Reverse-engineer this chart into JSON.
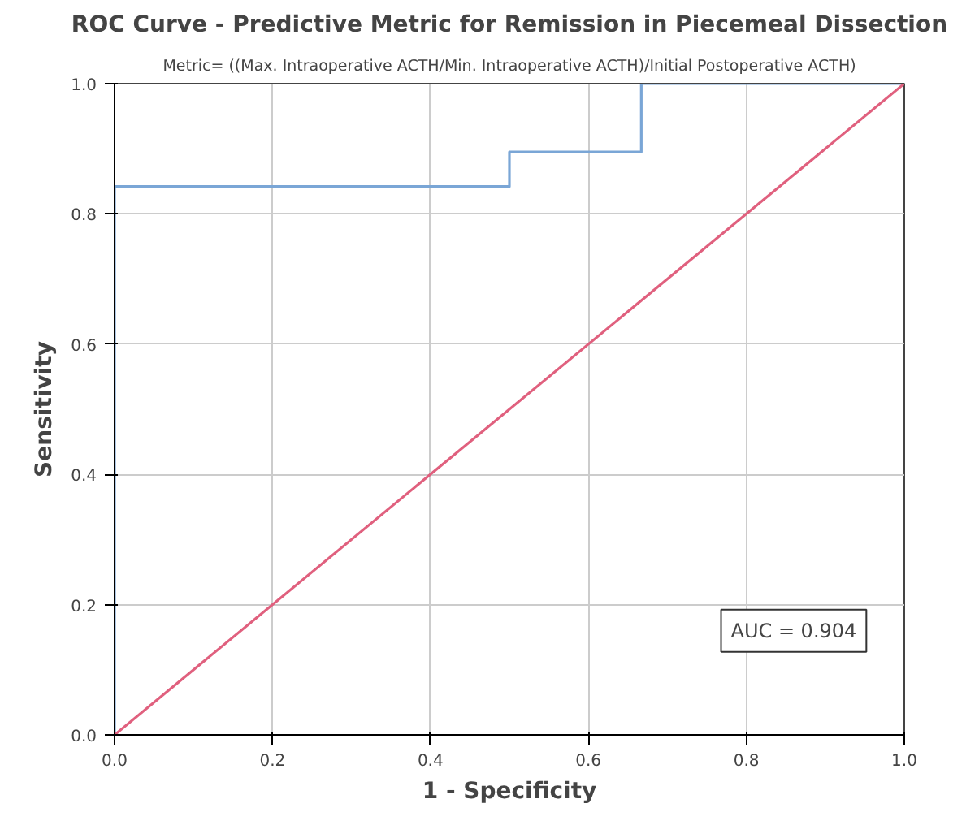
{
  "chart_data": {
    "type": "line",
    "title": "ROC Curve - Predictive Metric for Remission in Piecemeal Dissection",
    "subtitle": "Metric= ((Max. Intraoperative ACTH/Min. Intraoperative ACTH)/Initial Postoperative ACTH)",
    "xlabel": "1 - Specificity",
    "ylabel": "Sensitivity",
    "series": [
      {
        "color": "#7aa6d6",
        "x": [
          0,
          0,
          0.5,
          0.5,
          0.667,
          0.667,
          1
        ],
        "values": [
          0,
          0.842,
          0.842,
          0.895,
          0.895,
          1,
          1
        ]
      },
      {
        "color": "#e0607e",
        "x": [
          0,
          1
        ],
        "values": [
          0,
          1
        ]
      }
    ],
    "xlim": [
      0,
      1
    ],
    "ylim": [
      0,
      1
    ],
    "xticks": [
      {
        "value": 0,
        "label": "0.0"
      },
      0.2,
      0.4,
      0.6,
      0.8,
      {
        "value": 1,
        "label": "1.0"
      }
    ],
    "yticks": [
      {
        "value": 0,
        "label": "0.0"
      },
      0.2,
      0.4,
      0.6,
      0.8,
      {
        "value": 1,
        "label": "1.0"
      }
    ],
    "grid": true,
    "annotations": [
      "AUC = 0.904"
    ]
  }
}
